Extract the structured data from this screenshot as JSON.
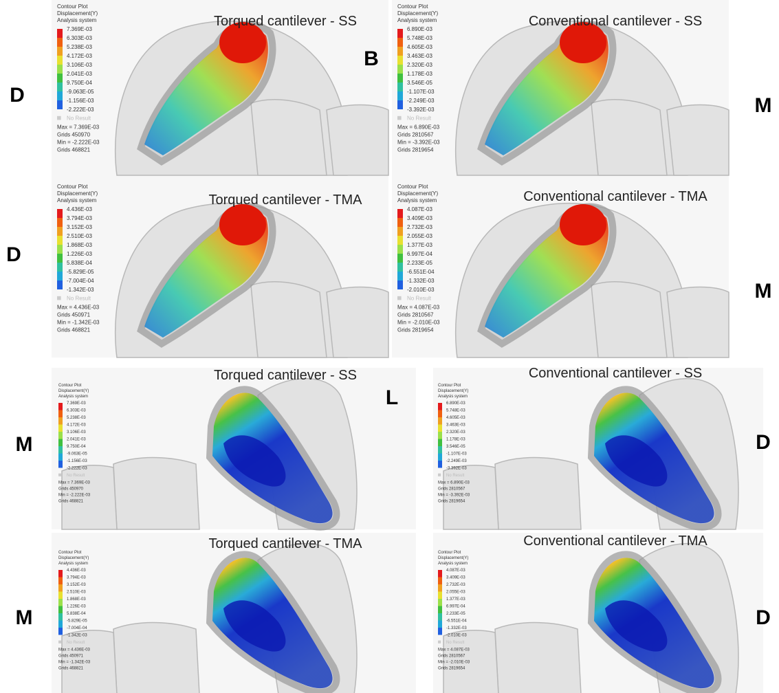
{
  "side_labels": [
    "D",
    "M",
    "B",
    "D",
    "M",
    "L",
    "M",
    "D",
    "M",
    "D"
  ],
  "panels": [
    {
      "title": "Torqued cantilever - SS",
      "legend": {
        "header": [
          "Contour Plot",
          "Displacement(Y)",
          "Analysis system"
        ],
        "values": [
          "7.369E-03",
          "6.303E-03",
          "5.238E-03",
          "4.172E-03",
          "3.106E-03",
          "2.041E-03",
          "9.750E-04",
          "-9.063E-05",
          "-1.156E-03",
          "-2.222E-03"
        ],
        "no_result": "No Result"
      },
      "stats": [
        "Max = 7.369E-03",
        "Grids 450970",
        "Min = -2.222E-03",
        "Grids 468821"
      ]
    },
    {
      "title": "Conventional cantilever - SS",
      "legend": {
        "header": [
          "Contour Plot",
          "Displacement(Y)",
          "Analysis system"
        ],
        "values": [
          "6.890E-03",
          "5.748E-03",
          "4.605E-03",
          "3.463E-03",
          "2.320E-03",
          "1.178E-03",
          "3.546E-05",
          "-1.107E-03",
          "-2.249E-03",
          "-3.392E-03"
        ],
        "no_result": "No Result"
      },
      "stats": [
        "Max = 6.890E-03",
        "Grids 2810567",
        "Min = -3.392E-03",
        "Grids 2819654"
      ]
    },
    {
      "title": "Torqued cantilever - TMA",
      "legend": {
        "header": [
          "Contour Plot",
          "Displacement(Y)",
          "Analysis system"
        ],
        "values": [
          "4.436E-03",
          "3.794E-03",
          "3.152E-03",
          "2.510E-03",
          "1.868E-03",
          "1.226E-03",
          "5.838E-04",
          "-5.829E-05",
          "-7.004E-04",
          "-1.342E-03"
        ],
        "no_result": "No Result"
      },
      "stats": [
        "Max = 4.436E-03",
        "Grids 450971",
        "Min = -1.342E-03",
        "Grids 468821"
      ]
    },
    {
      "title": "Conventional cantilever - TMA",
      "legend": {
        "header": [
          "Contour Plot",
          "Displacement(Y)",
          "Analysis system"
        ],
        "values": [
          "4.087E-03",
          "3.409E-03",
          "2.732E-03",
          "2.055E-03",
          "1.377E-03",
          "6.997E-04",
          "2.233E-05",
          "-6.551E-04",
          "-1.332E-03",
          "-2.010E-03"
        ],
        "no_result": "No Result"
      },
      "stats": [
        "Max = 4.087E-03",
        "Grids 2810567",
        "Min = -2.010E-03",
        "Grids 2819654"
      ]
    },
    {
      "title": "Torqued cantilever - SS",
      "legend": {
        "header": [
          "Contour Plot",
          "Displacement(Y)",
          "Analysis system"
        ],
        "values": [
          "7.369E-03",
          "6.303E-03",
          "5.238E-03",
          "4.172E-03",
          "3.106E-03",
          "2.041E-03",
          "9.750E-04",
          "-9.063E-05",
          "-1.156E-03",
          "-2.222E-03"
        ],
        "no_result": "No Result"
      },
      "stats": [
        "Max = 7.369E-03",
        "Grids 450970",
        "Min = -2.222E-03",
        "Grids 468821"
      ]
    },
    {
      "title": "Conventional cantilever - SS",
      "legend": {
        "header": [
          "Contour Plot",
          "Displacement(Y)",
          "Analysis system"
        ],
        "values": [
          "6.890E-03",
          "5.748E-03",
          "4.605E-03",
          "3.463E-03",
          "2.320E-03",
          "1.178E-03",
          "3.546E-05",
          "-1.107E-03",
          "-2.249E-03",
          "-3.392E-03"
        ],
        "no_result": "No Result"
      },
      "stats": [
        "Max = 6.890E-03",
        "Grids 2810567",
        "Min = -3.392E-03",
        "Grids 2819654"
      ]
    },
    {
      "title": "Torqued cantilever - TMA",
      "legend": {
        "header": [
          "Contour Plot",
          "Displacement(Y)",
          "Analysis system"
        ],
        "values": [
          "4.436E-03",
          "3.794E-03",
          "3.152E-03",
          "2.510E-03",
          "1.868E-03",
          "1.226E-03",
          "5.838E-04",
          "-5.829E-05",
          "-7.004E-04",
          "-1.342E-03"
        ],
        "no_result": "No Result"
      },
      "stats": [
        "Max = 4.436E-03",
        "Grids 450971",
        "Min = -1.342E-03",
        "Grids 468821"
      ]
    },
    {
      "title": "Conventional cantilever - TMA",
      "legend": {
        "header": [
          "Contour Plot",
          "Displacement(Y)",
          "Analysis system"
        ],
        "values": [
          "4.087E-03",
          "3.409E-03",
          "2.732E-03",
          "2.055E-03",
          "1.377E-03",
          "6.997E-04",
          "2.233E-05",
          "-6.551E-04",
          "-1.332E-03",
          "-2.010E-03"
        ],
        "no_result": "No Result"
      },
      "stats": [
        "Max = 4.087E-03",
        "Grids 2810567",
        "Min = -2.010E-03",
        "Grids 2819654"
      ]
    }
  ]
}
